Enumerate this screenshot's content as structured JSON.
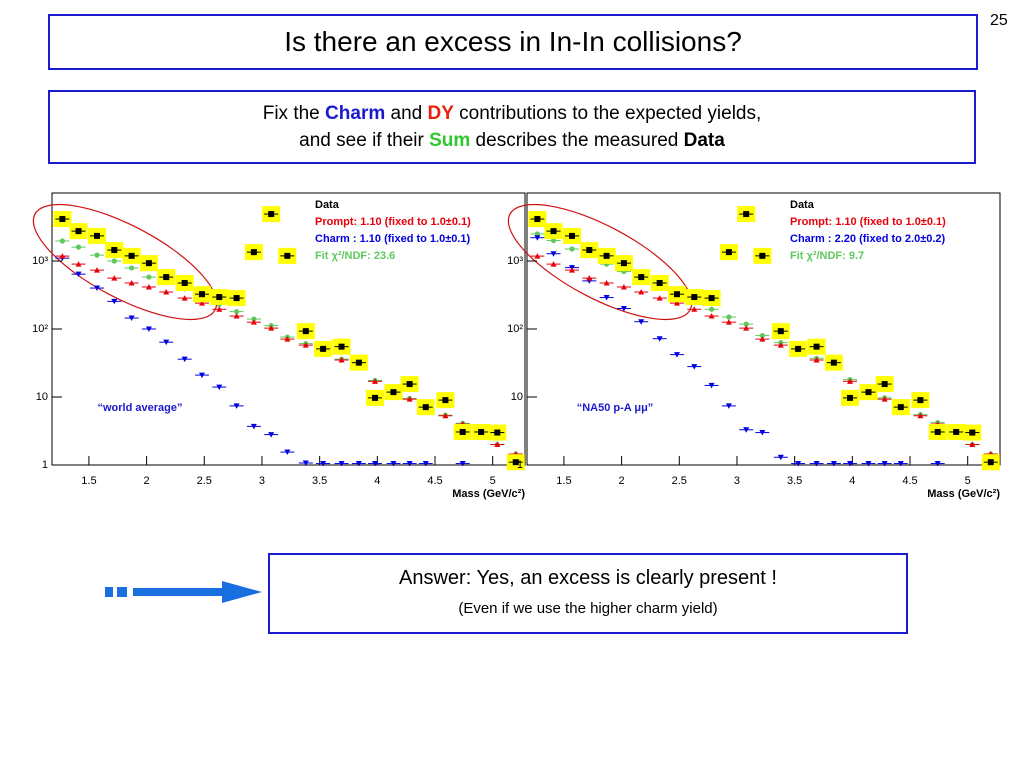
{
  "slide": {
    "title": "Is there an excess in In-In collisions?",
    "page_number": "25",
    "subtitle": {
      "line1": [
        "Fix the ",
        "Charm",
        " and ",
        "DY",
        " contributions to the expected yields,"
      ],
      "line2": [
        "and see if their ",
        "Sum",
        " describes the measured ",
        "Data"
      ]
    },
    "answer": "Answer: Yes, an excess is clearly present !",
    "answer_note": "(Even if we use the higher charm yield)"
  },
  "chart_data": [
    {
      "type": "scatter",
      "log_y": true,
      "xlabel": "Mass (GeV/c²)",
      "annotation": "“world average”",
      "xlim": [
        1.18,
        5.28
      ],
      "xticks": [
        1.5,
        2,
        2.5,
        3,
        3.5,
        4,
        4.5,
        5
      ],
      "ylim": [
        1,
        10000
      ],
      "yticks": [
        1,
        10,
        {
          "value": 100,
          "label": "10²"
        },
        {
          "value": 1000,
          "label": "10³"
        }
      ],
      "x": [
        1.27,
        1.41,
        1.57,
        1.72,
        1.87,
        2.02,
        2.17,
        2.33,
        2.48,
        2.63,
        2.78,
        2.93,
        3.08,
        3.22,
        3.38,
        3.53,
        3.69,
        3.84,
        3.98,
        4.14,
        4.28,
        4.42,
        4.59,
        4.74,
        4.9,
        5.04,
        5.2
      ],
      "series": [
        {
          "name": "Data",
          "color": "#000000",
          "marker": "square",
          "values": [
            4140,
            2750,
            2340,
            1450,
            1190,
            930,
            580,
            475,
            325,
            295,
            285,
            1350,
            4900,
            1190,
            93,
            51,
            55,
            32,
            9.7,
            11.8,
            15.5,
            7.1,
            9.0,
            3.06,
            3.06,
            3.0,
            1.1
          ]
        },
        {
          "name": "Prompt: 1.10 (fixed to 1.0±0.1)",
          "color": "#e8000b",
          "marker": "triangle-up",
          "values": [
            1180,
            900,
            735,
            560,
            475,
            415,
            350,
            285,
            240,
            195,
            155,
            126,
            103,
            71,
            58,
            46,
            35,
            28,
            17,
            10.7,
            9.3,
            7.6,
            5.3,
            4.0,
            3.1,
            2.0,
            1.45
          ]
        },
        {
          "name": "Charm : 1.10 (fixed to 1.0±0.1)",
          "color": "#0000e0",
          "marker": "triangle-down",
          "values": [
            1100,
            640,
            400,
            255,
            145,
            100,
            64,
            36,
            21,
            14,
            7.4,
            3.7,
            2.8,
            1.55,
            1.07,
            1.05,
            1.05,
            1.05,
            1.05,
            1.05,
            1.05,
            1.05,
            null,
            1.05,
            null,
            null,
            null
          ]
        },
        {
          "name": "Fit  χ²/NDF: 23.6",
          "color": "#5fc85f",
          "marker": "circle",
          "values": [
            1970,
            1600,
            1220,
            1000,
            790,
            580,
            510,
            390,
            285,
            230,
            180,
            140,
            112,
            76,
            61,
            48,
            36,
            29,
            17.5,
            11,
            9.5,
            7.8,
            5.4,
            4.1,
            3.1,
            2.0,
            1.45
          ]
        }
      ]
    },
    {
      "type": "scatter",
      "log_y": true,
      "xlabel": "Mass (GeV/c²)",
      "annotation": "“NA50 p-A μμ”",
      "xlim": [
        1.18,
        5.28
      ],
      "xticks": [
        1.5,
        2,
        2.5,
        3,
        3.5,
        4,
        4.5,
        5
      ],
      "ylim": [
        1,
        10000
      ],
      "yticks": [
        1,
        10,
        {
          "value": 100,
          "label": "10²"
        },
        {
          "value": 1000,
          "label": "10³"
        }
      ],
      "x": [
        1.27,
        1.41,
        1.57,
        1.72,
        1.87,
        2.02,
        2.17,
        2.33,
        2.48,
        2.63,
        2.78,
        2.93,
        3.08,
        3.22,
        3.38,
        3.53,
        3.69,
        3.84,
        3.98,
        4.14,
        4.28,
        4.42,
        4.59,
        4.74,
        4.9,
        5.04,
        5.2
      ],
      "series": [
        {
          "name": "Data",
          "color": "#000000",
          "marker": "square",
          "values": [
            4140,
            2750,
            2340,
            1450,
            1190,
            930,
            580,
            475,
            325,
            295,
            285,
            1350,
            4900,
            1190,
            93,
            51,
            55,
            32,
            9.7,
            11.8,
            15.5,
            7.1,
            9.0,
            3.06,
            3.06,
            3.0,
            1.1
          ]
        },
        {
          "name": "Prompt: 1.10 (fixed to 1.0±0.1)",
          "color": "#e8000b",
          "marker": "triangle-up",
          "values": [
            1180,
            900,
            735,
            560,
            475,
            415,
            350,
            285,
            240,
            195,
            155,
            126,
            103,
            71,
            58,
            46,
            35,
            28,
            17,
            10.7,
            9.3,
            7.6,
            5.3,
            4.0,
            3.1,
            2.0,
            1.45
          ]
        },
        {
          "name": "Charm : 2.20 (fixed to 2.0±0.2)",
          "color": "#0000e0",
          "marker": "triangle-down",
          "values": [
            2200,
            1280,
            800,
            510,
            290,
            200,
            128,
            72,
            42,
            28,
            14.8,
            7.4,
            3.3,
            3.0,
            1.3,
            1.05,
            1.05,
            1.05,
            1.05,
            1.05,
            1.05,
            1.05,
            null,
            1.05,
            null,
            null,
            null
          ]
        },
        {
          "name": "Fit  χ²/NDF:  9.7",
          "color": "#5fc85f",
          "marker": "circle",
          "values": [
            2500,
            2000,
            1500,
            1200,
            900,
            700,
            580,
            430,
            320,
            250,
            195,
            150,
            118,
            80,
            63,
            50,
            37,
            30,
            18,
            11.3,
            9.7,
            8.0,
            5.5,
            4.2,
            3.1,
            2.0,
            1.45
          ]
        }
      ]
    }
  ]
}
